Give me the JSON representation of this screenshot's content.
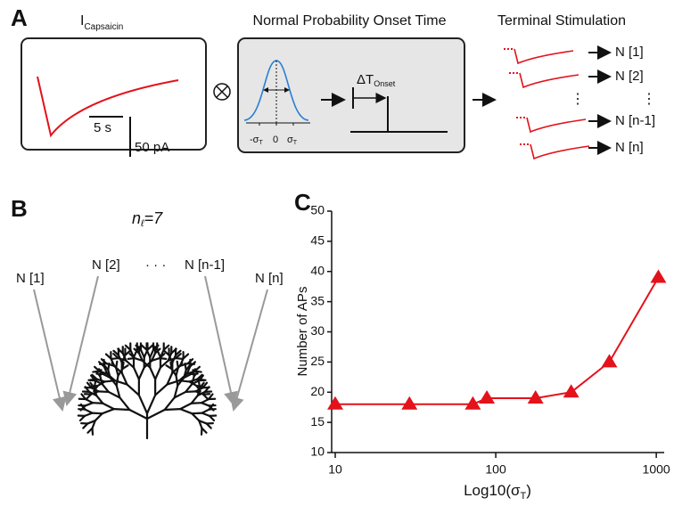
{
  "panel_a": {
    "label": "A",
    "current_title": [
      "I",
      "Capsaicin"
    ],
    "scale_time": "5 s",
    "scale_amp": "50 pA",
    "onset_title": "Normal Probability Onset Time",
    "gauss_ticks": [
      [
        "-σ",
        "T"
      ],
      "0",
      [
        "σ",
        "T"
      ]
    ],
    "delta": [
      "ΔT",
      "Onset"
    ],
    "terminal_title": "Terminal Stimulation",
    "outputs": [
      "N [1]",
      "N [2]",
      "N [n-1]",
      "N [n]"
    ]
  },
  "panel_b": {
    "label": "B",
    "n_label": [
      "n",
      "ℓ",
      "=7"
    ],
    "inputs": [
      "N [1]",
      "N [2]",
      "· · ·",
      "N [n-1]",
      "N [n]"
    ]
  },
  "chart_data": {
    "type": "line",
    "label": "C",
    "ylabel": "Number of APs",
    "xlabel": [
      "Log10(σ",
      "T",
      ")"
    ],
    "xscale": "log",
    "x": [
      10,
      29,
      72,
      88,
      177,
      295,
      510,
      1030
    ],
    "series": [
      {
        "color": "#e3121b",
        "marker": "triangle",
        "values": [
          18,
          18,
          18,
          19,
          19,
          20,
          25,
          39
        ]
      }
    ],
    "xlim": [
      9.5,
      1120
    ],
    "xticks": [
      10,
      100,
      1000
    ],
    "ylim": [
      10,
      50
    ],
    "yticks": [
      10,
      15,
      20,
      25,
      30,
      35,
      40,
      45,
      50
    ]
  }
}
